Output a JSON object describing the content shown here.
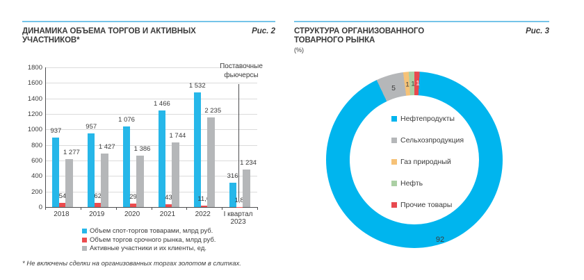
{
  "colors": {
    "accent_rule": "#74c4e8",
    "bar_blue": "#26b7e9",
    "bar_red": "#ec4b4e",
    "bar_gray": "#b5b7b9",
    "donut_blue": "#00b5ee",
    "donut_gray": "#b5b7b9",
    "donut_orange": "#f6c277",
    "donut_green": "#abcfa4",
    "donut_red": "#e8494f",
    "grid": "#dbdbdb",
    "axis": "#4d4d4f",
    "text": "#3a3a3a"
  },
  "figure2": {
    "title": "ДИНАМИКА ОБЪЕМА ТОРГОВ И АКТИВНЫХ\nУЧАСТНИКОВ*",
    "fig_label": "Рис. 2",
    "annotation": "Поставочные\nфьючерсы",
    "footnote": "* Не включены сделки на организованных торгах золотом в слитках."
  },
  "figure3": {
    "title": "СТРУКТУРА ОРГАНИЗОВАННОГО\nТОВАРНОГО РЫНКА",
    "unit": "(%)",
    "fig_label": "Рис. 3"
  },
  "chart_data": [
    {
      "type": "bar",
      "title": "ДИНАМИКА ОБЪЕМА ТОРГОВ И АКТИВНЫХ УЧАСТНИКОВ*",
      "categories": [
        "2018",
        "2019",
        "2020",
        "2021",
        "2022",
        "I квартал\n2023"
      ],
      "ylim": [
        0,
        1800
      ],
      "ytick_step": 200,
      "yticks": [
        "0",
        "200",
        "400",
        "600",
        "800",
        "1000",
        "1200",
        "1400",
        "1600",
        "1800"
      ],
      "grid": true,
      "legend_position": "bottom",
      "annotation": "Поставочные фьючерсы (вертикальная линия перед I кварталом 2023)",
      "series": [
        {
          "name": "Объем спот-торгов товарами, млрд руб.",
          "color": "#26b7e9",
          "values": [
            937,
            957,
            1076,
            1466,
            1532,
            316
          ],
          "labels": [
            "937",
            "957",
            "1 076",
            "1 466",
            "1 532",
            "316"
          ],
          "drawn_heights_axis_units": [
            895,
            950,
            1040,
            1245,
            1475,
            310
          ]
        },
        {
          "name": "Объем торгов срочного рынка, млрд руб.",
          "color": "#ec4b4e",
          "values": [
            54,
            62,
            29,
            43,
            11.6,
            1.8
          ],
          "labels": [
            "54",
            "62",
            "29",
            "43",
            "11,6",
            "1,8"
          ],
          "drawn_heights_axis_units": [
            50,
            57,
            42,
            40,
            22,
            4
          ]
        },
        {
          "name": "Активные участники и их клиенты, ед.",
          "color": "#b5b7b9",
          "values": [
            1277,
            1427,
            1386,
            1744,
            2235,
            1234
          ],
          "labels": [
            "1 277",
            "1 427",
            "1 386",
            "1 744",
            "2 235",
            "1 234"
          ],
          "drawn_heights_axis_units": [
            615,
            690,
            665,
            835,
            1155,
            485
          ]
        }
      ]
    },
    {
      "type": "pie",
      "title": "СТРУКТУРА ОРГАНИЗОВАННОГО ТОВАРНОГО РЫНКА (%)",
      "labels": [
        "Нефтепродукты",
        "Сельхозпродукция",
        "Газ природный",
        "Нефть",
        "Прочие товары"
      ],
      "values": [
        92,
        5,
        1,
        1,
        1
      ],
      "value_labels": [
        "92",
        "5",
        "1",
        "1",
        "1"
      ],
      "colors": [
        "#00b5ee",
        "#b5b7b9",
        "#f6c277",
        "#abcfa4",
        "#e8494f"
      ],
      "legend_position": "center"
    }
  ]
}
